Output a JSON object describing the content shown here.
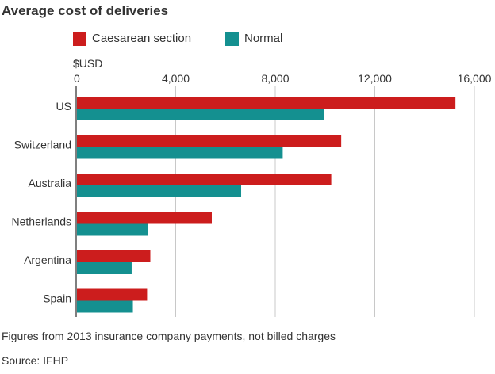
{
  "title": "Average cost of deliveries",
  "unit_label": "$USD",
  "note": "Figures from 2013 insurance company payments, not billed charges",
  "source": "Source: IFHP",
  "colors": {
    "caesarean": "#cc1d1d",
    "normal": "#149090",
    "grid": "#c8c8c8",
    "axis": "#555555"
  },
  "chart_data": {
    "type": "bar",
    "orientation": "horizontal",
    "title": "Average cost of deliveries",
    "xlabel": "$USD",
    "ylabel": "",
    "xlim": [
      0,
      16000
    ],
    "xticks": [
      0,
      4000,
      8000,
      12000,
      16000
    ],
    "xtick_labels": [
      "0",
      "4,000",
      "8,000",
      "12,000",
      "16,000"
    ],
    "grid": true,
    "legend_position": "top",
    "categories": [
      "US",
      "Switzerland",
      "Australia",
      "Netherlands",
      "Argentina",
      "Spain"
    ],
    "series": [
      {
        "name": "Caesarean section",
        "color": "#cc1d1d",
        "values": [
          15240,
          10650,
          10250,
          5450,
          2980,
          2850
        ]
      },
      {
        "name": "Normal",
        "color": "#149090",
        "values": [
          9950,
          8300,
          6630,
          2880,
          2230,
          2280
        ]
      }
    ]
  }
}
